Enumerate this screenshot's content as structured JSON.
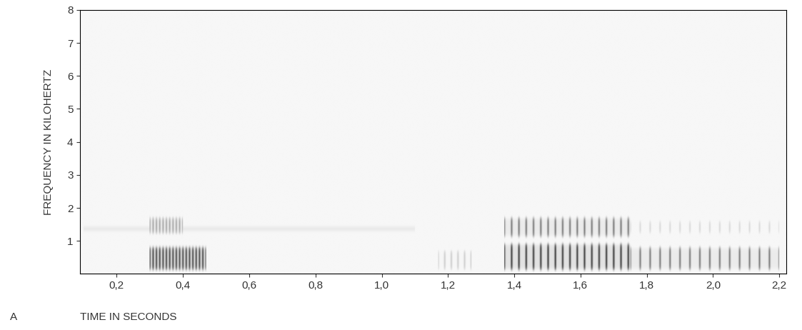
{
  "chart_data": {
    "type": "spectrogram",
    "xlabel": "TIME IN SECONDS",
    "ylabel": "FREQUENCY IN KILOHERTZ",
    "panel_label": "A",
    "xlim": [
      0.09,
      2.22
    ],
    "ylim": [
      0,
      8
    ],
    "xticks": [
      {
        "value": 0.2,
        "label": "0,2"
      },
      {
        "value": 0.4,
        "label": "0,4"
      },
      {
        "value": 0.6,
        "label": "0,6"
      },
      {
        "value": 0.8,
        "label": "0,8"
      },
      {
        "value": 1.0,
        "label": "1,0"
      },
      {
        "value": 1.2,
        "label": "1,2"
      },
      {
        "value": 1.4,
        "label": "1,4"
      },
      {
        "value": 1.6,
        "label": "1,6"
      },
      {
        "value": 1.8,
        "label": "1,8"
      },
      {
        "value": 2.0,
        "label": "2,0"
      },
      {
        "value": 2.2,
        "label": "2,2"
      }
    ],
    "yticks": [
      1,
      2,
      3,
      4,
      5,
      6,
      7,
      8
    ],
    "segments": [
      {
        "start": 0.3,
        "end": 0.47,
        "pulse_interval": 0.01,
        "bands": [
          {
            "low": 0.1,
            "high": 0.8,
            "level": 0.75
          }
        ]
      },
      {
        "start": 0.3,
        "end": 0.4,
        "pulse_interval": 0.01,
        "bands": [
          {
            "low": 1.2,
            "high": 1.7,
            "level": 0.45
          }
        ]
      },
      {
        "start": 0.1,
        "end": 1.1,
        "bands": [
          {
            "low": 1.25,
            "high": 1.45,
            "level": 0.18
          }
        ]
      },
      {
        "start": 1.17,
        "end": 1.27,
        "pulse_interval": 0.02,
        "bands": [
          {
            "low": 0.1,
            "high": 0.7,
            "level": 0.3
          }
        ]
      },
      {
        "start": 1.37,
        "end": 1.75,
        "pulse_interval": 0.022,
        "bands": [
          {
            "low": 0.1,
            "high": 0.9,
            "level": 0.8
          },
          {
            "low": 1.1,
            "high": 1.7,
            "level": 0.6
          }
        ]
      },
      {
        "start": 1.75,
        "end": 2.2,
        "pulse_interval": 0.03,
        "bands": [
          {
            "low": 0.1,
            "high": 0.8,
            "level": 0.6
          },
          {
            "low": 1.2,
            "high": 1.6,
            "level": 0.25
          }
        ]
      }
    ]
  }
}
